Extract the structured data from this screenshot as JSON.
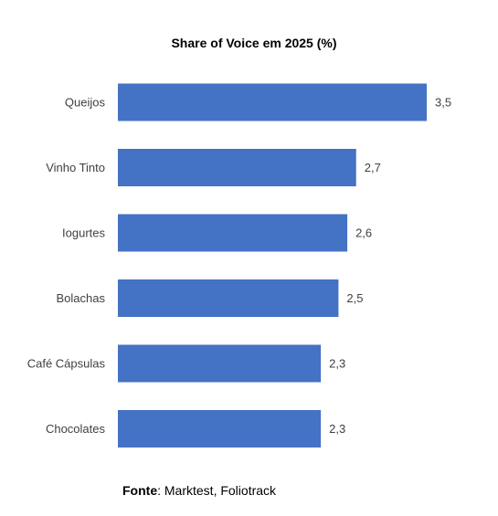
{
  "chart_data": {
    "type": "bar",
    "orientation": "horizontal",
    "title": "Share of Voice em 2025 (%)",
    "categories": [
      "Queijos",
      "Vinho Tinto",
      "Iogurtes",
      "Bolachas",
      "Café Cápsulas",
      "Chocolates"
    ],
    "values": [
      3.5,
      2.7,
      2.6,
      2.5,
      2.3,
      2.3
    ],
    "value_labels": [
      "3,5",
      "2,7",
      "2,6",
      "2,5",
      "2,3",
      "2,3"
    ],
    "xlim": [
      0,
      3.5
    ],
    "grid": false,
    "legend": "none",
    "bar_color": "#4472C4"
  },
  "source": {
    "label": "Fonte",
    "separator": ":",
    "text": " Marktest, Foliotrack"
  }
}
